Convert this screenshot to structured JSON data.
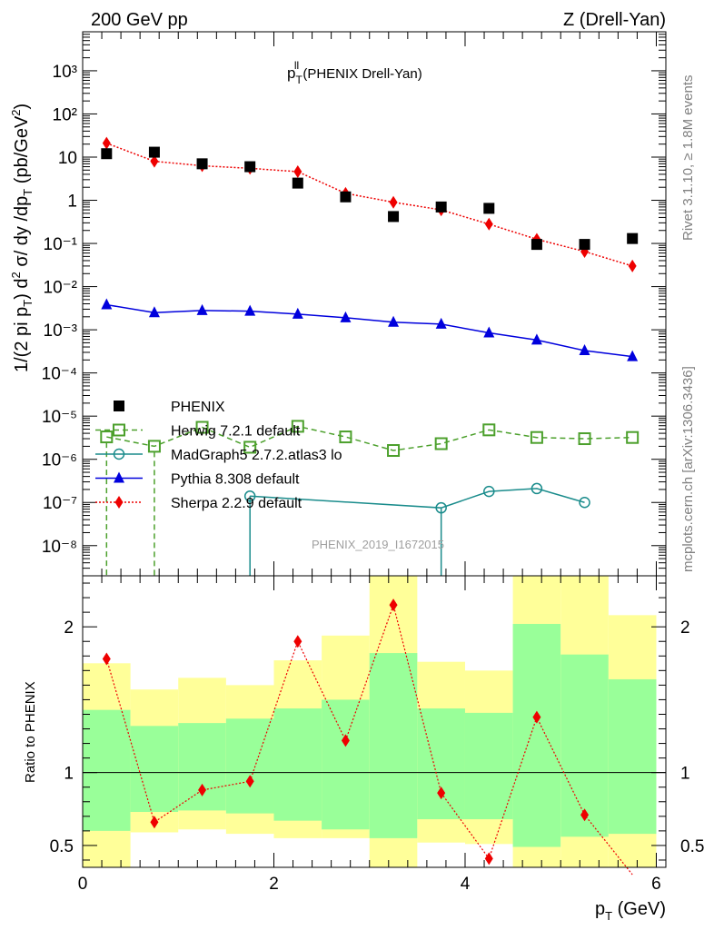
{
  "header": {
    "left": "200 GeV pp",
    "right": "Z (Drell-Yan)",
    "side_right": "Rivet 3.1.10, ≥ 1.8M events",
    "side_right2": "mcplots.cern.ch [arXiv:1306.3436]",
    "watermark": "PHENIX_2019_I1672015"
  },
  "chart_data": [
    {
      "type": "scatter",
      "title_main": "p",
      "title_sup": "ll",
      "title_sub": "T",
      "title_rest": " (PHENIX Drell-Yan)",
      "ylabel": "1/(2 pi p_T) d^2 σ/ dy /dp_T (pb/GeV^2)",
      "ylabel_parts": {
        "a": "1/(2 pi p",
        "b": ") d",
        "c": " σ/ dy /dp",
        "d": " (pb/GeV",
        "e": ")"
      },
      "yscale": "log",
      "ylim": [
        2e-09,
        8000
      ],
      "xlim": [
        0,
        6.1
      ],
      "ytick_labels": [
        "10⁻⁸",
        "10⁻⁷",
        "10⁻⁶",
        "10⁻⁵",
        "10⁻⁴",
        "10⁻³",
        "10⁻²",
        "10⁻¹",
        "1",
        "10",
        "10²",
        "10³"
      ],
      "ytick_values": [
        1e-08,
        1e-07,
        1e-06,
        1e-05,
        0.0001,
        0.001,
        0.01,
        0.1,
        1,
        10,
        100,
        1000
      ],
      "legend_position": "lower-left",
      "x": [
        0.25,
        0.75,
        1.25,
        1.75,
        2.25,
        2.75,
        3.25,
        3.75,
        4.25,
        4.75,
        5.25,
        5.75
      ],
      "series": [
        {
          "name": "PHENIX",
          "color": "#000000",
          "marker": "square",
          "line": "none",
          "values": [
            12,
            13,
            7.0,
            6.0,
            2.5,
            1.2,
            0.42,
            0.7,
            0.65,
            0.095,
            0.095,
            0.13
          ]
        },
        {
          "name": "Herwig 7.2.1 default",
          "color": "#4ca02c",
          "marker": "open-square",
          "line": "dashed",
          "values": [
            3.3e-06,
            2e-06,
            5.5e-06,
            1.9e-06,
            5.8e-06,
            3.3e-06,
            1.6e-06,
            2.3e-06,
            4.8e-06,
            3.2e-06,
            3e-06,
            3.2e-06
          ]
        },
        {
          "name": "MadGraph5 2.7.2.atlas3 lo",
          "color": "#1a8c8c",
          "marker": "open-circle",
          "line": "solid",
          "values": [
            null,
            null,
            null,
            1.4e-07,
            null,
            null,
            null,
            7.5e-08,
            1.8e-07,
            2.1e-07,
            1e-07,
            null
          ]
        },
        {
          "name": "Pythia 8.308 default",
          "color": "#0000dd",
          "marker": "triangle",
          "line": "solid",
          "values": [
            0.0038,
            0.0025,
            0.0028,
            0.0027,
            0.0023,
            0.0019,
            0.0015,
            0.00135,
            0.00085,
            0.00058,
            0.00033,
            0.00024
          ]
        },
        {
          "name": "Sherpa 2.2.9 default",
          "color": "#ee0000",
          "marker": "diamond",
          "line": "dotted",
          "values": [
            21,
            8,
            6.3,
            5.5,
            4.6,
            1.45,
            0.9,
            0.6,
            0.28,
            0.125,
            0.065,
            0.03
          ]
        }
      ]
    },
    {
      "type": "line",
      "ylabel": "Ratio to PHENIX",
      "xlabel_main": "p",
      "xlabel_sub": "T",
      "xlabel_rest": " (GeV)",
      "ylim": [
        0.35,
        2.35
      ],
      "xlim": [
        0,
        6.1
      ],
      "xtick_labels": [
        "0",
        "2",
        "4",
        "6"
      ],
      "xtick_values": [
        0,
        2,
        4,
        6
      ],
      "ytick_labels": [
        "0.5",
        "1",
        "2"
      ],
      "ytick_values": [
        0.5,
        1,
        2
      ],
      "bin_edges": [
        0,
        0.5,
        1.0,
        1.5,
        2.0,
        2.5,
        3.0,
        3.5,
        4.0,
        4.5,
        5.0,
        5.5,
        6.0
      ],
      "band_green_color": "#99ff99",
      "band_yellow_color": "#ffff99",
      "band_green_low": [
        0.6,
        0.73,
        0.74,
        0.72,
        0.67,
        0.61,
        0.55,
        0.68,
        0.68,
        0.49,
        0.56,
        0.58
      ],
      "band_green_high": [
        1.43,
        1.32,
        1.34,
        1.37,
        1.44,
        1.5,
        1.82,
        1.44,
        1.41,
        2.02,
        1.81,
        1.64
      ],
      "band_yellow_low": [
        0.35,
        0.59,
        0.61,
        0.58,
        0.55,
        0.55,
        0.35,
        0.52,
        0.51,
        0.35,
        0.35,
        0.35
      ],
      "band_yellow_high": [
        1.75,
        1.57,
        1.65,
        1.6,
        1.77,
        1.94,
        2.35,
        1.76,
        1.7,
        2.35,
        2.35,
        2.08
      ],
      "series": [
        {
          "name": "Sherpa 2.2.9 default",
          "color": "#ee0000",
          "values": [
            1.78,
            0.66,
            0.88,
            0.94,
            1.9,
            1.22,
            2.15,
            0.86,
            0.41,
            1.38,
            0.71,
            0.3
          ]
        }
      ]
    }
  ]
}
